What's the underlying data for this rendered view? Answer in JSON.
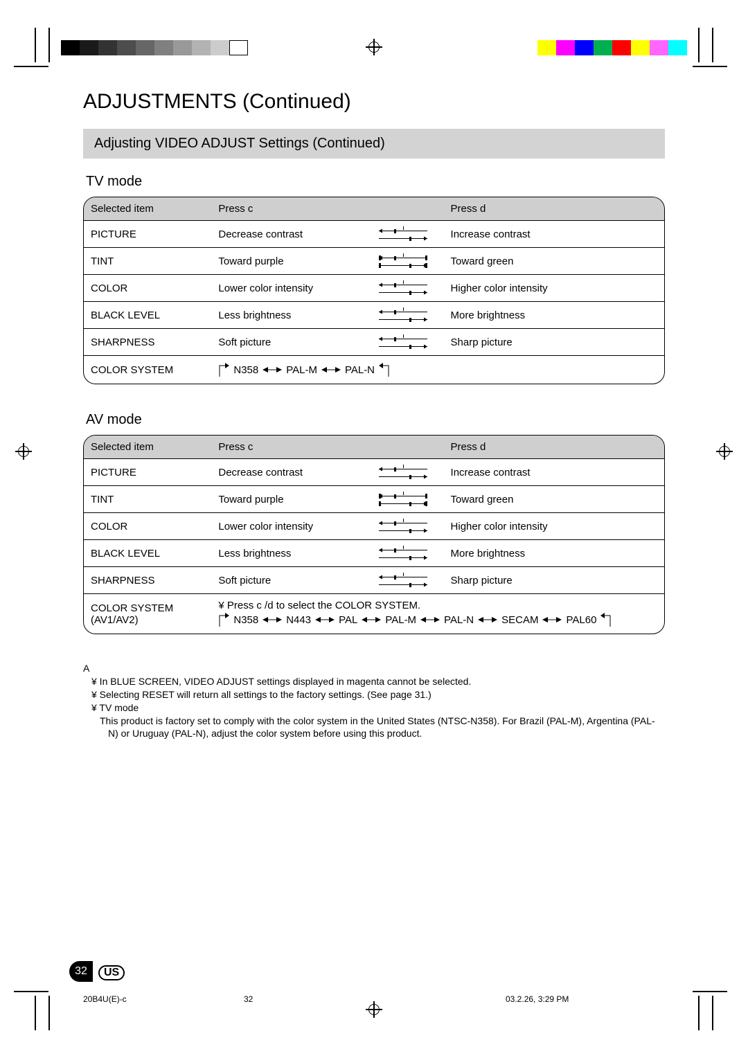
{
  "header": {
    "title": "ADJUSTMENTS (Continued)",
    "subtitle": "Adjusting VIDEO ADJUST Settings (Continued)"
  },
  "print_bars": {
    "gray_swatches": [
      "#000000",
      "#1a1a1a",
      "#333333",
      "#4d4d4d",
      "#666666",
      "#808080",
      "#999999",
      "#b3b3b3",
      "#cccccc",
      "#ffffff"
    ],
    "color_swatches": [
      "#ffff00",
      "#ff00ff",
      "#0000ff",
      "#00b050",
      "#ff0000",
      "#ffff00",
      "#ff66ff",
      "#00ffff"
    ]
  },
  "tables": {
    "tv": {
      "heading": "TV mode",
      "columns": [
        "Selected item",
        "Press c",
        "",
        "Press d"
      ],
      "rows": [
        {
          "item": "PICTURE",
          "c": "Decrease contrast",
          "d": "Increase contrast",
          "slider": "center"
        },
        {
          "item": "TINT",
          "c": "Toward purple",
          "d": "Toward green",
          "slider": "ends"
        },
        {
          "item": "COLOR",
          "c": "Lower color intensity",
          "d": "Higher color intensity",
          "slider": "center"
        },
        {
          "item": "BLACK LEVEL",
          "c": "Less brightness",
          "d": "More brightness",
          "slider": "center"
        },
        {
          "item": "SHARPNESS",
          "c": "Soft picture",
          "d": "Sharp picture",
          "slider": "center"
        }
      ],
      "cycle_row": {
        "item": "COLOR SYSTEM",
        "sequence": [
          "N358",
          "PAL-M",
          "PAL-N"
        ]
      }
    },
    "av": {
      "heading": "AV mode",
      "columns": [
        "Selected item",
        "Press c",
        "",
        "Press d"
      ],
      "rows": [
        {
          "item": "PICTURE",
          "c": "Decrease contrast",
          "d": "Increase contrast",
          "slider": "center"
        },
        {
          "item": "TINT",
          "c": "Toward purple",
          "d": "Toward green",
          "slider": "ends"
        },
        {
          "item": "COLOR",
          "c": "Lower color intensity",
          "d": "Higher color intensity",
          "slider": "center"
        },
        {
          "item": "BLACK LEVEL",
          "c": "Less brightness",
          "d": "More brightness",
          "slider": "center"
        },
        {
          "item": "SHARPNESS",
          "c": "Soft picture",
          "d": "Sharp picture",
          "slider": "center"
        }
      ],
      "cycle_row": {
        "item": "COLOR SYSTEM\n(AV1/AV2)",
        "lead": "¥  Press c /d  to select the COLOR SYSTEM.",
        "sequence": [
          "N358",
          "N443",
          "PAL",
          "PAL-M",
          "PAL-N",
          "SECAM",
          "PAL60"
        ]
      }
    }
  },
  "notes": {
    "heading": "A",
    "items": [
      "¥  In BLUE SCREEN, VIDEO ADJUST settings displayed in magenta cannot be selected.",
      "¥  Selecting RESET will return all settings to the factory settings. (See page 31.)",
      "¥  TV mode",
      "This product is factory set to comply with the color system in the United States (NTSC-N358). For Brazil (PAL-M), Argentina (PAL-N) or Uruguay (PAL-N), adjust the color system before using this product."
    ]
  },
  "footer": {
    "page_number": "32",
    "region_badge": "US",
    "doc_code": "20B4U(E)-c",
    "mid_num": "32",
    "timestamp": "03.2.26, 3:29 PM"
  },
  "colors": {
    "table_header_bg": "#cfcfcf",
    "gray_strip_bg": "#d3d3d3",
    "border": "#000000"
  }
}
